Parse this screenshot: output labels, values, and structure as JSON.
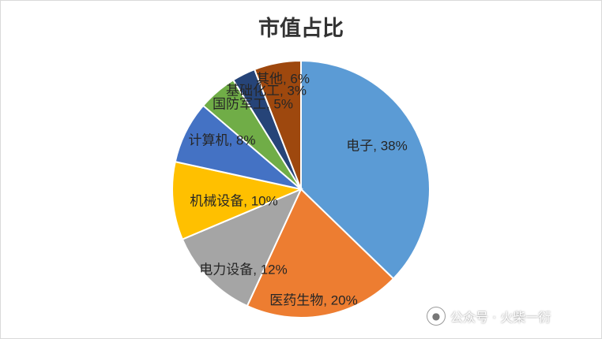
{
  "chart_data": {
    "type": "pie",
    "title": "市值占比",
    "categories": [
      "电子",
      "医药生物",
      "电力设备",
      "机械设备",
      "计算机",
      "国防军工",
      "基础化工",
      "其他"
    ],
    "values": [
      38,
      20,
      12,
      10,
      8,
      5,
      3,
      6
    ],
    "labels": [
      "电子, 38%",
      "医药生物, 20%",
      "电力设备, 12%",
      "机械设备, 10%",
      "计算机, 8%",
      "国防军工, 5%",
      "基础化工, 3%",
      "其他, 6%"
    ],
    "colors": [
      "#5B9BD5",
      "#ED7D31",
      "#A5A5A5",
      "#FFC000",
      "#4472C4",
      "#70AD47",
      "#264478",
      "#9E480E"
    ],
    "legend": "none",
    "data_labels": "on-slice"
  },
  "watermark": {
    "icon": "wechat-icon",
    "text": "公众号 · 火柴一衍"
  }
}
